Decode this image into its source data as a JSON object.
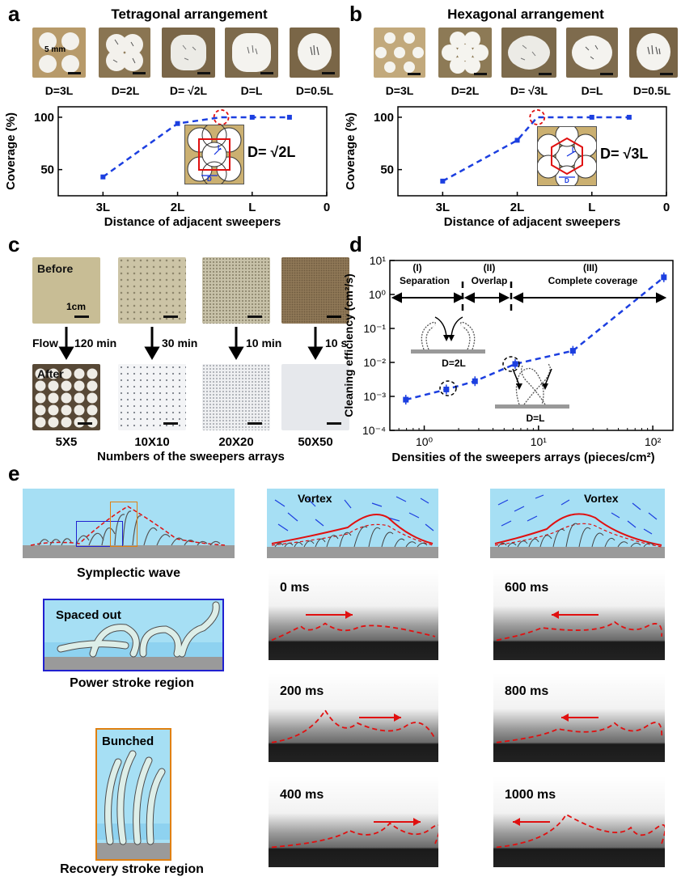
{
  "panel_labels": {
    "a": "a",
    "b": "b",
    "c": "c",
    "d": "d",
    "e": "e"
  },
  "panel_a": {
    "title": "Tetragonal arrangement",
    "scale_text": "5 mm",
    "photo_labels": [
      "D=3L",
      "D=2L",
      "D= √2L",
      "D=L",
      "D=0.5L"
    ],
    "inset_label": "D= √2L",
    "inset_small_labels": {
      "l": "L",
      "d": "D"
    }
  },
  "panel_b": {
    "title": "Hexagonal arrangement",
    "photo_labels": [
      "D=3L",
      "D=2L",
      "D= √3L",
      "D=L",
      "D=0.5L"
    ],
    "inset_label": "D= √3L",
    "inset_small_labels": {
      "l": "L",
      "d": "D"
    }
  },
  "panel_c": {
    "before_label": "Before",
    "after_label": "After",
    "scale_text": "1cm",
    "flow_label": "Flow",
    "times": [
      "120 min",
      "30 min",
      "10 min",
      "10 s"
    ],
    "array_labels": [
      "5X5",
      "10X10",
      "20X20",
      "50X50"
    ],
    "xlabel": "Numbers of the sweepers arrays"
  },
  "panel_d": {
    "regions": [
      {
        "num": "(I)",
        "name": "Separation"
      },
      {
        "num": "(II)",
        "name": "Overlap"
      },
      {
        "num": "(III)",
        "name": "Complete coverage"
      }
    ],
    "sketch_labels": [
      "D=2L",
      "D=L"
    ]
  },
  "panel_e": {
    "wave_label": "Symplectic wave",
    "vortex_label": "Vortex",
    "power_inner": "Spaced out",
    "power_label": "Power stroke region",
    "recovery_inner": "Bunched",
    "recovery_label": "Recovery stroke region",
    "frames": [
      "0 ms",
      "600 ms",
      "200 ms",
      "800 ms",
      "400 ms",
      "1000 ms"
    ]
  },
  "chart_data": [
    {
      "type": "line",
      "title": "",
      "xlabel": "Distance of adjacent sweepers",
      "ylabel": "Coverage (%)",
      "x_ticks": [
        "3L",
        "2L",
        "L",
        "0"
      ],
      "y_ticks": [
        "50",
        "100"
      ],
      "xlim": [
        3.6,
        0
      ],
      "ylim": [
        25,
        110
      ],
      "series": [
        {
          "x": [
            3,
            2,
            1.414,
            1,
            0.5
          ],
          "y": [
            43,
            94,
            100,
            100,
            100
          ],
          "err": [
            2,
            1.5,
            0,
            0,
            0
          ]
        }
      ]
    },
    {
      "type": "line",
      "title": "",
      "xlabel": "Distance of adjacent sweepers",
      "ylabel": "Coverage (%)",
      "x_ticks": [
        "3L",
        "2L",
        "L",
        "0"
      ],
      "y_ticks": [
        "50",
        "100"
      ],
      "xlim": [
        3.6,
        0
      ],
      "ylim": [
        25,
        110
      ],
      "series": [
        {
          "x": [
            3,
            2,
            1.732,
            1,
            0.5
          ],
          "y": [
            39,
            78,
            100,
            100,
            100
          ],
          "err": [
            2,
            2,
            0,
            0,
            0
          ]
        }
      ]
    },
    {
      "type": "line",
      "title": "",
      "xlabel": "Densities of the sweepers arrays (pieces/cm²)",
      "ylabel": "Cleaning efficiency (cm²/s)",
      "x_scale": "log",
      "y_scale": "log",
      "x_ticks": [
        "10⁰",
        "10¹",
        "10²"
      ],
      "y_ticks": [
        "10⁻⁴",
        "10⁻³",
        "10⁻²",
        "10⁻¹",
        "10⁰",
        "10¹"
      ],
      "xlim": [
        0.5,
        150
      ],
      "ylim": [
        0.0001,
        10
      ],
      "series": [
        {
          "x": [
            0.69,
            1.56,
            2.78,
            6.25,
            20,
            125
          ],
          "y": [
            0.0008,
            0.0016,
            0.0028,
            0.009,
            0.022,
            3.2
          ]
        }
      ]
    }
  ]
}
